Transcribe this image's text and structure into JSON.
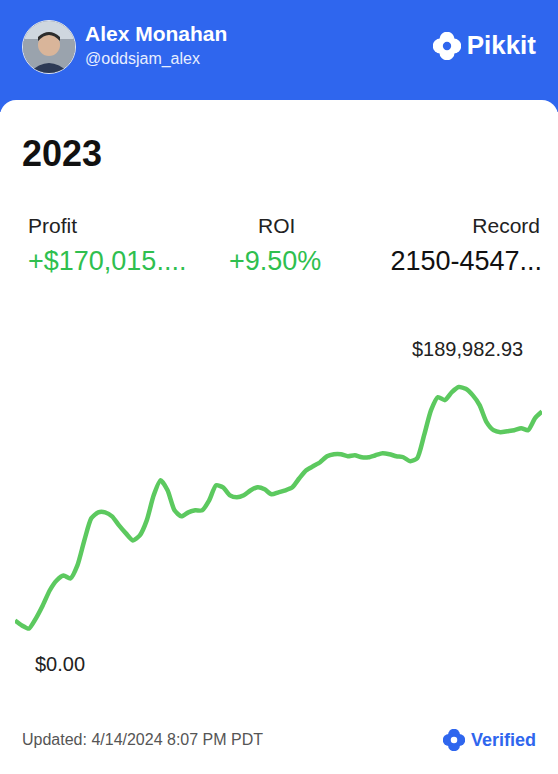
{
  "header": {
    "name": "Alex Monahan",
    "handle": "@oddsjam_alex",
    "brand": "Pikkit"
  },
  "title": "2023",
  "stats": [
    {
      "label": "Profit",
      "value": "+$170,015...."
    },
    {
      "label": "ROI",
      "value": "+9.50%"
    },
    {
      "label": "Record",
      "value": "2150-4547..."
    }
  ],
  "chart_data": {
    "type": "line",
    "values": [
      0,
      -4075,
      -6520,
      1630,
      12225,
      24450,
      32600,
      36675,
      34230,
      44825,
      65200,
      83130,
      88020,
      88020,
      84760,
      77425,
      70905,
      65200,
      69275,
      81500,
      101875,
      114100,
      105950,
      89650,
      84760,
      88020,
      89650,
      89650,
      97800,
      110025,
      108395,
      101875,
      100245,
      101875,
      105950,
      108395,
      106765,
      102690,
      104320,
      105950,
      108395,
      115730,
      122250,
      125510,
      128770,
      133660,
      135290,
      135290,
      133660,
      134475,
      132845,
      132845,
      134475,
      136105,
      135290,
      133660,
      132845,
      129585,
      132030,
      150775,
      171150,
      181745,
      179300,
      185820,
      189982.93,
      188500,
      183375,
      175225,
      161370,
      154850,
      153220,
      154035,
      154850,
      156480,
      154850,
      164630,
      170015
    ],
    "color": "#5cc95f",
    "ylim": [
      -63000,
      251000
    ],
    "yticks": [],
    "grid": false,
    "tick_labels": false,
    "line_style": "solid",
    "annotations": [
      {
        "text": "$189,982.93",
        "value": 189982.93
      },
      {
        "text": "$0.00",
        "value": 0
      }
    ]
  },
  "footer": {
    "updated": "Updated: 4/14/2024 8:07 PM PDT",
    "verified": "Verified"
  }
}
